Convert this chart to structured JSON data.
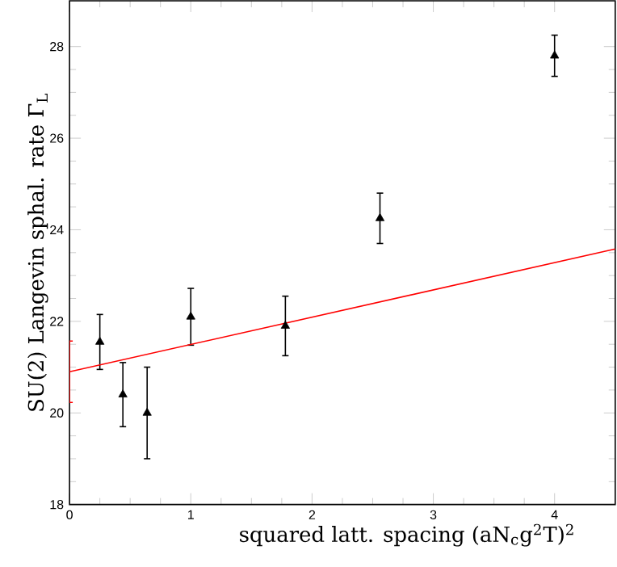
{
  "chart_data": {
    "type": "scatter",
    "xlabel": "squared latt. spacing (aN$_{c}$g$^{2}$T)$^{2}$",
    "ylabel": "SU(2) Langevin sphal. rate Γ$_{L}$",
    "xlim": [
      0,
      4.5
    ],
    "ylim": [
      18,
      29
    ],
    "xticks": [
      0,
      1,
      2,
      3,
      4
    ],
    "yticks": [
      18,
      20,
      22,
      24,
      26,
      28
    ],
    "marker": "triangle",
    "series": [
      {
        "color": "#000000",
        "x": [
          0.25,
          0.44,
          0.64,
          1.0,
          1.78,
          2.56,
          4.0
        ],
        "values": [
          21.55,
          20.4,
          20.0,
          22.1,
          21.9,
          24.25,
          27.8
        ],
        "errors": [
          0.6,
          0.7,
          1.0,
          0.62,
          0.65,
          0.55,
          0.45
        ]
      },
      {
        "type": "line",
        "color": "#ff0000",
        "x": [
          0,
          4.5
        ],
        "values": [
          20.9,
          23.58
        ],
        "errors": [
          0.67,
          null
        ],
        "marker": "none",
        "line_style": "solid"
      }
    ]
  }
}
